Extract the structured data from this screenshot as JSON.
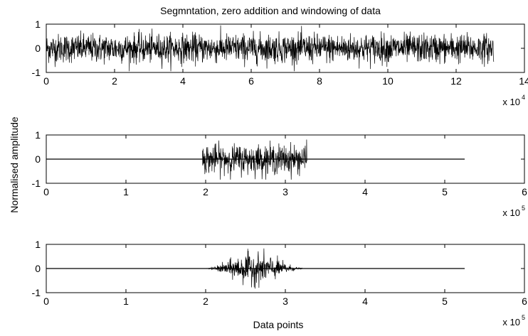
{
  "chart_data": {
    "type": "line",
    "title": "Segmntation, zero addition and windowing of data",
    "ylabel": "Normalised amplitude",
    "xlabel": "Data points",
    "panels": [
      {
        "id": "raw-segment",
        "xlim": [
          0,
          14
        ],
        "ylim": [
          -1,
          1
        ],
        "xticks": [
          "0",
          "2",
          "4",
          "6",
          "8",
          "10",
          "12",
          "14"
        ],
        "yticks": [
          "1",
          "0",
          "-1"
        ],
        "exponent_base": "x 10",
        "exponent_power": "4",
        "signal": {
          "kind": "noise",
          "start": 0.0,
          "end": 13.1,
          "amplitude": 0.7,
          "peak": 0.95
        },
        "baseline": null
      },
      {
        "id": "zero-padded",
        "xlim": [
          0,
          6
        ],
        "ylim": [
          -1,
          1
        ],
        "xticks": [
          "0",
          "1",
          "2",
          "3",
          "4",
          "5",
          "6"
        ],
        "yticks": [
          "1",
          "0",
          "-1"
        ],
        "exponent_base": "x 10",
        "exponent_power": "5",
        "signal": {
          "kind": "noise",
          "start": 1.96,
          "end": 3.27,
          "amplitude": 0.7,
          "peak": 0.85
        },
        "baseline": {
          "start": 0,
          "end": 5.25
        }
      },
      {
        "id": "windowed",
        "xlim": [
          0,
          6
        ],
        "ylim": [
          -1,
          1
        ],
        "xticks": [
          "0",
          "1",
          "2",
          "3",
          "4",
          "5",
          "6"
        ],
        "yticks": [
          "1",
          "0",
          "-1"
        ],
        "exponent_base": "x 10",
        "exponent_power": "5",
        "signal": {
          "kind": "hann-windowed-noise",
          "start": 1.96,
          "end": 3.27,
          "amplitude": 0.75,
          "peak": 0.9
        },
        "baseline": {
          "start": 0,
          "end": 5.25
        }
      }
    ]
  }
}
